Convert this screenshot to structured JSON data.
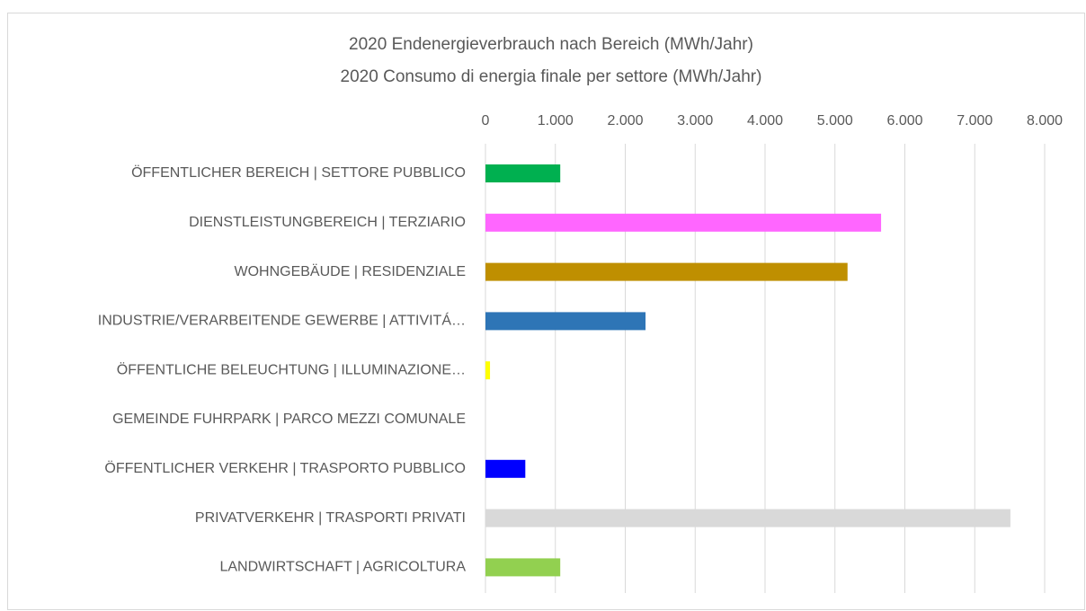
{
  "chart_data": {
    "type": "bar",
    "orientation": "horizontal",
    "title": "2020 Endenergieverbrauch nach Bereich (MWh/Jahr)",
    "subtitle": "2020 Consumo di energia finale per settore (MWh/Jahr)",
    "categories": [
      "ÖFFENTLICHER BEREICH | SETTORE PUBBLICO",
      "DIENSTLEISTUNGBEREICH | TERZIARIO",
      "WOHNGEBÄUDE | RESIDENZIALE",
      "INDUSTRIE/VERARBEITENDE GEWERBE | ATTIVITÁ…",
      "ÖFFENTLICHE BELEUCHTUNG | ILLUMINAZIONE…",
      "GEMEINDE FUHRPARK | PARCO MEZZI COMUNALE",
      "ÖFFENTLICHER VERKEHR | TRASPORTO PUBBLICO",
      "PRIVATVERKEHR | TRASPORTI PRIVATI",
      "LANDWIRTSCHAFT | AGRICOLTURA"
    ],
    "values": [
      1070,
      5660,
      5180,
      2290,
      65,
      0,
      570,
      7510,
      1070
    ],
    "colors": [
      "#00b050",
      "#ff66ff",
      "#bf8f00",
      "#2e75b6",
      "#ffff00",
      "#7030a0",
      "#0000ff",
      "#d9d9d9",
      "#92d050"
    ],
    "xlim": [
      0,
      8000
    ],
    "xticks": [
      0,
      {
        "value": 1000,
        "label": "1.000"
      },
      {
        "value": 2000,
        "label": "2.000"
      },
      {
        "value": 3000,
        "label": "3.000"
      },
      {
        "value": 4000,
        "label": "4.000"
      },
      {
        "value": 5000,
        "label": "5.000"
      },
      {
        "value": 6000,
        "label": "6.000"
      },
      {
        "value": 7000,
        "label": "7.000"
      },
      {
        "value": 8000,
        "label": "8.000"
      }
    ],
    "grid": true
  }
}
